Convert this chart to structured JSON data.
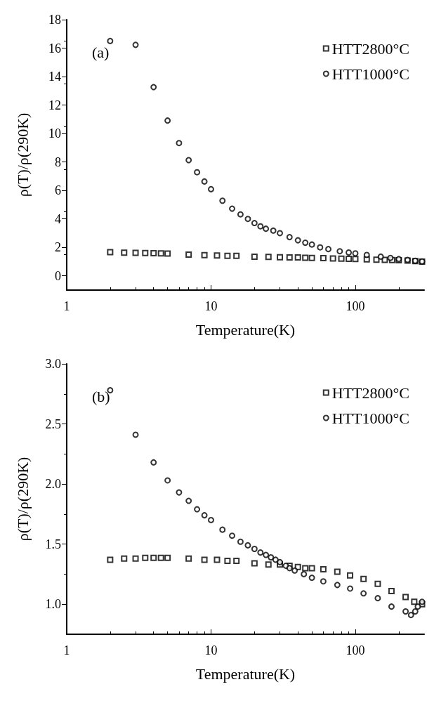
{
  "chart_data": [
    {
      "type": "scatter",
      "xlabel": "Temperature(K)",
      "ylabel": "ρ(T)/ρ(290K)",
      "annotations": [
        "(a)"
      ],
      "log": "x",
      "xlim": [
        1,
        300
      ],
      "xticks": [
        1,
        10,
        100
      ],
      "ylim": [
        -1,
        18
      ],
      "yticks": [
        0,
        2,
        4,
        6,
        8,
        10,
        12,
        14,
        16,
        18
      ],
      "grid": false,
      "legend": "top right",
      "series": [
        {
          "name": "HTT2800°C",
          "color": "#000000",
          "marker": "square",
          "x": [
            2,
            2.5,
            3,
            3.5,
            4,
            4.5,
            5,
            7,
            9,
            11,
            13,
            15,
            20,
            25,
            30,
            35,
            40,
            45,
            50,
            60,
            70,
            80,
            90,
            100,
            120,
            140,
            160,
            180,
            200,
            230,
            260,
            290
          ],
          "values": [
            1.66,
            1.63,
            1.62,
            1.6,
            1.59,
            1.58,
            1.57,
            1.49,
            1.46,
            1.43,
            1.41,
            1.4,
            1.35,
            1.33,
            1.31,
            1.3,
            1.29,
            1.27,
            1.26,
            1.24,
            1.22,
            1.21,
            1.19,
            1.18,
            1.16,
            1.14,
            1.12,
            1.11,
            1.1,
            1.07,
            1.04,
            1.0
          ]
        },
        {
          "name": "HTT1000°C",
          "color": "#000000",
          "marker": "circle",
          "x": [
            2,
            3,
            4,
            5,
            6,
            7,
            8,
            9,
            10,
            12,
            14,
            16,
            18,
            20,
            22,
            24,
            27,
            30,
            35,
            40,
            45,
            50,
            57,
            65,
            78,
            90,
            100,
            120,
            150,
            175,
            200,
            230,
            260,
            290
          ],
          "values": [
            16.5,
            16.23,
            13.26,
            10.91,
            9.33,
            8.13,
            7.28,
            6.63,
            6.09,
            5.28,
            4.72,
            4.32,
            4.0,
            3.71,
            3.48,
            3.31,
            3.18,
            3.0,
            2.72,
            2.5,
            2.33,
            2.2,
            2.0,
            1.88,
            1.73,
            1.64,
            1.58,
            1.47,
            1.35,
            1.26,
            1.18,
            1.12,
            1.06,
            1.01
          ]
        }
      ]
    },
    {
      "type": "scatter",
      "xlabel": "Temperature(K)",
      "ylabel": "ρ(T)/ρ(290K)",
      "annotations": [
        "(b)"
      ],
      "log": "x",
      "xlim": [
        1,
        300
      ],
      "xticks": [
        1,
        10,
        100
      ],
      "ylim": [
        0.75,
        3.0
      ],
      "yticks": [
        {
          "value": 1.0,
          "label": "1.0"
        },
        1.5,
        {
          "value": 2.0,
          "label": "2.0"
        },
        2.5,
        {
          "value": 3.0,
          "label": "3.0"
        }
      ],
      "grid": false,
      "legend": "top right",
      "series": [
        {
          "name": "HTT2800°C",
          "color": "#000000",
          "marker": "square",
          "x": [
            2,
            2.5,
            3,
            3.5,
            4,
            4.5,
            5,
            7,
            9,
            11,
            13,
            15,
            20,
            25,
            30,
            35,
            40,
            45,
            50,
            60,
            75,
            92,
            114,
            143,
            178,
            223,
            256,
            290
          ],
          "values": [
            1.37,
            1.38,
            1.38,
            1.385,
            1.385,
            1.385,
            1.385,
            1.38,
            1.37,
            1.37,
            1.36,
            1.36,
            1.34,
            1.33,
            1.33,
            1.32,
            1.31,
            1.3,
            1.3,
            1.29,
            1.27,
            1.24,
            1.21,
            1.17,
            1.11,
            1.06,
            1.02,
            1.0
          ]
        },
        {
          "name": "HTT1000°C",
          "color": "#000000",
          "marker": "circle",
          "x": [
            2,
            3,
            4,
            5,
            6,
            7,
            8,
            9,
            10,
            12,
            14,
            16,
            18,
            20,
            22,
            24,
            26,
            28,
            30,
            33,
            35,
            38,
            44,
            50,
            60,
            75,
            92,
            114,
            143,
            178,
            223,
            243,
            260,
            271,
            290
          ],
          "values": [
            2.78,
            2.41,
            2.18,
            2.03,
            1.93,
            1.86,
            1.79,
            1.74,
            1.7,
            1.62,
            1.57,
            1.52,
            1.49,
            1.46,
            1.43,
            1.41,
            1.39,
            1.37,
            1.35,
            1.32,
            1.3,
            1.28,
            1.25,
            1.22,
            1.19,
            1.16,
            1.13,
            1.09,
            1.05,
            0.98,
            0.94,
            0.91,
            0.94,
            0.98,
            1.02
          ]
        }
      ]
    }
  ]
}
